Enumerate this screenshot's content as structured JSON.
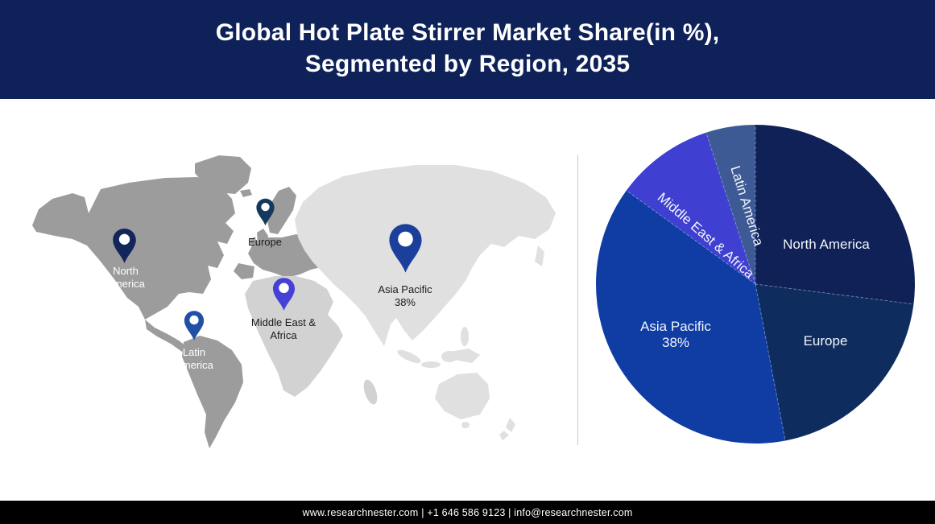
{
  "header": {
    "title_line1": "Global Hot Plate Stirrer Market Share(in %),",
    "title_line2": "Segmented by Region, 2035",
    "bg_color": "#0e2158",
    "text_color": "#ffffff"
  },
  "map": {
    "description": "Grayscale world map with colored location pins per region",
    "colors": {
      "land_dark": "#9c9c9c",
      "land_medium": "#d2d2d2",
      "land_light": "#e0e0e0"
    },
    "pins": [
      {
        "id": "north-america",
        "color": "#12265a",
        "label_line1": "North",
        "label_line2": "America",
        "label_color": "#ffffff"
      },
      {
        "id": "europe",
        "color": "#14395e",
        "label_line1": "Europe",
        "label_line2": "",
        "label_color": "#1b1b1b"
      },
      {
        "id": "latin-america",
        "color": "#2050a5",
        "label_line1": "Latin",
        "label_line2": "America",
        "label_color": "#ffffff"
      },
      {
        "id": "middle-east-africa",
        "color": "#4540d6",
        "label_line1": "Middle East &",
        "label_line2": "Africa",
        "label_color": "#1b1b1b"
      },
      {
        "id": "asia-pacific",
        "color": "#1c3f9c",
        "label_line1": "Asia Pacific",
        "label_line2": "38%",
        "label_color": "#1b1b1b"
      }
    ]
  },
  "chart_data": {
    "type": "pie",
    "title": "Global Hot Plate Stirrer Market Share(in %), Segmented by Region, 2035",
    "start_angle_deg": 0,
    "direction": "clockwise",
    "segments": [
      {
        "label": "North America",
        "value": 27,
        "value_estimated": true,
        "color": "#0f2156"
      },
      {
        "label": "Europe",
        "value": 20,
        "value_estimated": true,
        "color": "#0e2d5e"
      },
      {
        "label": "Asia Pacific",
        "value": 38,
        "value_estimated": false,
        "color": "#0f3da4"
      },
      {
        "label": "Middle East & Africa",
        "value": 10,
        "value_estimated": true,
        "color": "#3f3fd1"
      },
      {
        "label": "Latin America",
        "value": 5,
        "value_estimated": true,
        "color": "#3e5a94"
      }
    ],
    "note": "Only the Asia Pacific share (38%) is labeled in the figure; other slice values are estimated from arc angles.",
    "slice_border": "dashed light line between slices",
    "legend_position": "labels inside slices"
  },
  "pie_labels": {
    "north_america": "North America",
    "europe": "Europe",
    "asia_pacific_line1": "Asia Pacific",
    "asia_pacific_line2": "38%",
    "middle_east_africa": "Middle East & Africa",
    "latin_america": "Latin America"
  },
  "footer": {
    "text": "www.researchnester.com | +1 646 586 9123 | info@researchnester.com"
  }
}
